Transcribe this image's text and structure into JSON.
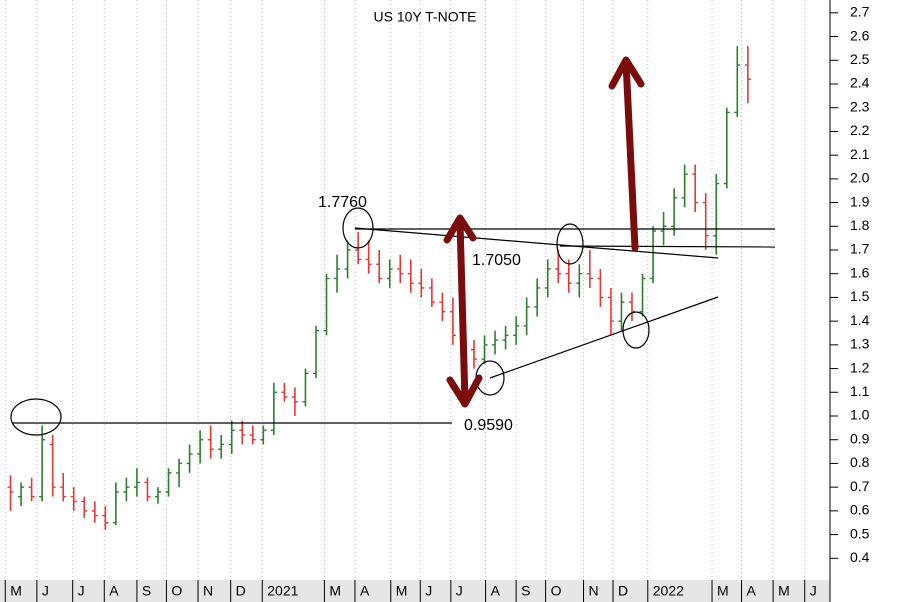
{
  "chart_data": {
    "type": "ohlc",
    "title": "US 10Y T-NOTE",
    "up_color": "#2e7d32",
    "down_color": "#e53935",
    "grid": true,
    "ylim": [
      0.3,
      2.75
    ],
    "yticks": [
      0.4,
      0.5,
      0.6,
      0.7,
      0.8,
      0.9,
      {
        "value": 1,
        "label": "1.0"
      },
      1.1,
      1.2,
      1.3,
      1.4,
      1.5,
      1.6,
      1.7,
      1.8,
      1.9,
      {
        "value": 2,
        "label": "2.0"
      },
      2.1,
      2.2,
      2.3,
      2.4,
      2.5,
      2.6,
      2.7
    ],
    "xlim": [
      -1,
      77.8
    ],
    "xticks": [
      {
        "value": -0.5,
        "label": "M"
      },
      {
        "value": 2.5,
        "label": "J"
      },
      {
        "value": 5.9,
        "label": "J"
      },
      {
        "value": 8.9,
        "label": "A"
      },
      {
        "value": 12.0,
        "label": "S"
      },
      {
        "value": 14.8,
        "label": "O"
      },
      {
        "value": 17.8,
        "label": "N"
      },
      {
        "value": 20.9,
        "label": "D"
      },
      {
        "value": 23.9,
        "label": "2021"
      },
      {
        "value": 29.8,
        "label": "M"
      },
      {
        "value": 32.7,
        "label": "A"
      },
      {
        "value": 36.1,
        "label": "M"
      },
      {
        "value": 38.9,
        "label": "J"
      },
      {
        "value": 41.8,
        "label": "J"
      },
      {
        "value": 45.1,
        "label": "A"
      },
      {
        "value": 48.0,
        "label": "S"
      },
      {
        "value": 50.8,
        "label": "O"
      },
      {
        "value": 54.4,
        "label": "N"
      },
      {
        "value": 57.2,
        "label": "D"
      },
      {
        "value": 60.5,
        "label": "2022"
      },
      {
        "value": 66.6,
        "label": "M"
      },
      {
        "value": 69.4,
        "label": "A"
      },
      {
        "value": 72.4,
        "label": "M"
      },
      {
        "value": 75.4,
        "label": "J"
      }
    ],
    "ohlc": [
      [
        0.7,
        0.75,
        0.6,
        0.68
      ],
      [
        0.66,
        0.72,
        0.62,
        0.7
      ],
      [
        0.7,
        0.74,
        0.64,
        0.66
      ],
      [
        0.66,
        0.96,
        0.64,
        0.9
      ],
      [
        0.88,
        0.92,
        0.66,
        0.7
      ],
      [
        0.7,
        0.76,
        0.64,
        0.66
      ],
      [
        0.66,
        0.7,
        0.6,
        0.64
      ],
      [
        0.64,
        0.66,
        0.57,
        0.6
      ],
      [
        0.6,
        0.64,
        0.55,
        0.58
      ],
      [
        0.58,
        0.62,
        0.52,
        0.55
      ],
      [
        0.55,
        0.72,
        0.54,
        0.68
      ],
      [
        0.68,
        0.74,
        0.64,
        0.7
      ],
      [
        0.7,
        0.78,
        0.66,
        0.72
      ],
      [
        0.72,
        0.74,
        0.64,
        0.66
      ],
      [
        0.66,
        0.7,
        0.63,
        0.68
      ],
      [
        0.68,
        0.78,
        0.66,
        0.76
      ],
      [
        0.76,
        0.82,
        0.7,
        0.8
      ],
      [
        0.8,
        0.88,
        0.76,
        0.84
      ],
      [
        0.84,
        0.94,
        0.8,
        0.9
      ],
      [
        0.9,
        0.96,
        0.82,
        0.86
      ],
      [
        0.86,
        0.92,
        0.82,
        0.88
      ],
      [
        0.88,
        0.98,
        0.84,
        0.94
      ],
      [
        0.94,
        0.98,
        0.88,
        0.92
      ],
      [
        0.92,
        0.96,
        0.88,
        0.9
      ],
      [
        0.9,
        0.96,
        0.88,
        0.94
      ],
      [
        0.94,
        1.14,
        0.92,
        1.1
      ],
      [
        1.1,
        1.14,
        1.06,
        1.08
      ],
      [
        1.08,
        1.12,
        1.0,
        1.06
      ],
      [
        1.06,
        1.2,
        1.04,
        1.18
      ],
      [
        1.18,
        1.38,
        1.16,
        1.36
      ],
      [
        1.36,
        1.6,
        1.34,
        1.58
      ],
      [
        1.58,
        1.68,
        1.52,
        1.62
      ],
      [
        1.62,
        1.74,
        1.58,
        1.7
      ],
      [
        1.7,
        1.776,
        1.64,
        1.66
      ],
      [
        1.66,
        1.74,
        1.6,
        1.64
      ],
      [
        1.64,
        1.7,
        1.56,
        1.58
      ],
      [
        1.58,
        1.66,
        1.54,
        1.62
      ],
      [
        1.62,
        1.68,
        1.56,
        1.6
      ],
      [
        1.6,
        1.66,
        1.52,
        1.56
      ],
      [
        1.56,
        1.62,
        1.5,
        1.54
      ],
      [
        1.54,
        1.58,
        1.46,
        1.48
      ],
      [
        1.48,
        1.52,
        1.4,
        1.44
      ],
      [
        1.44,
        1.5,
        1.3,
        1.34
      ],
      [
        1.34,
        1.4,
        1.22,
        1.28
      ],
      [
        1.28,
        1.32,
        1.2,
        1.24
      ],
      [
        1.24,
        1.34,
        1.22,
        1.3
      ],
      [
        1.3,
        1.36,
        1.26,
        1.32
      ],
      [
        1.32,
        1.38,
        1.28,
        1.34
      ],
      [
        1.34,
        1.42,
        1.3,
        1.38
      ],
      [
        1.38,
        1.5,
        1.34,
        1.46
      ],
      [
        1.46,
        1.58,
        1.42,
        1.54
      ],
      [
        1.54,
        1.66,
        1.5,
        1.62
      ],
      [
        1.62,
        1.7,
        1.56,
        1.6
      ],
      [
        1.6,
        1.66,
        1.52,
        1.56
      ],
      [
        1.56,
        1.64,
        1.5,
        1.6
      ],
      [
        1.6,
        1.7,
        1.54,
        1.58
      ],
      [
        1.58,
        1.62,
        1.46,
        1.5
      ],
      [
        1.5,
        1.54,
        1.34,
        1.4
      ],
      [
        1.4,
        1.52,
        1.36,
        1.48
      ],
      [
        1.48,
        1.52,
        1.4,
        1.44
      ],
      [
        1.44,
        1.6,
        1.42,
        1.58
      ],
      [
        1.58,
        1.8,
        1.56,
        1.78
      ],
      [
        1.78,
        1.86,
        1.72,
        1.8
      ],
      [
        1.8,
        1.96,
        1.76,
        1.92
      ],
      [
        1.92,
        2.06,
        1.88,
        2.02
      ],
      [
        2.02,
        2.06,
        1.86,
        1.9
      ],
      [
        1.9,
        1.94,
        1.7,
        1.76
      ],
      [
        1.76,
        2.02,
        1.68,
        1.98
      ],
      [
        1.98,
        2.3,
        1.96,
        2.28
      ],
      [
        2.28,
        2.56,
        2.26,
        2.48
      ],
      [
        2.48,
        2.56,
        2.32,
        2.42
      ]
    ],
    "annotations": [
      "1.7760",
      "1.7050",
      "0.9590"
    ]
  }
}
